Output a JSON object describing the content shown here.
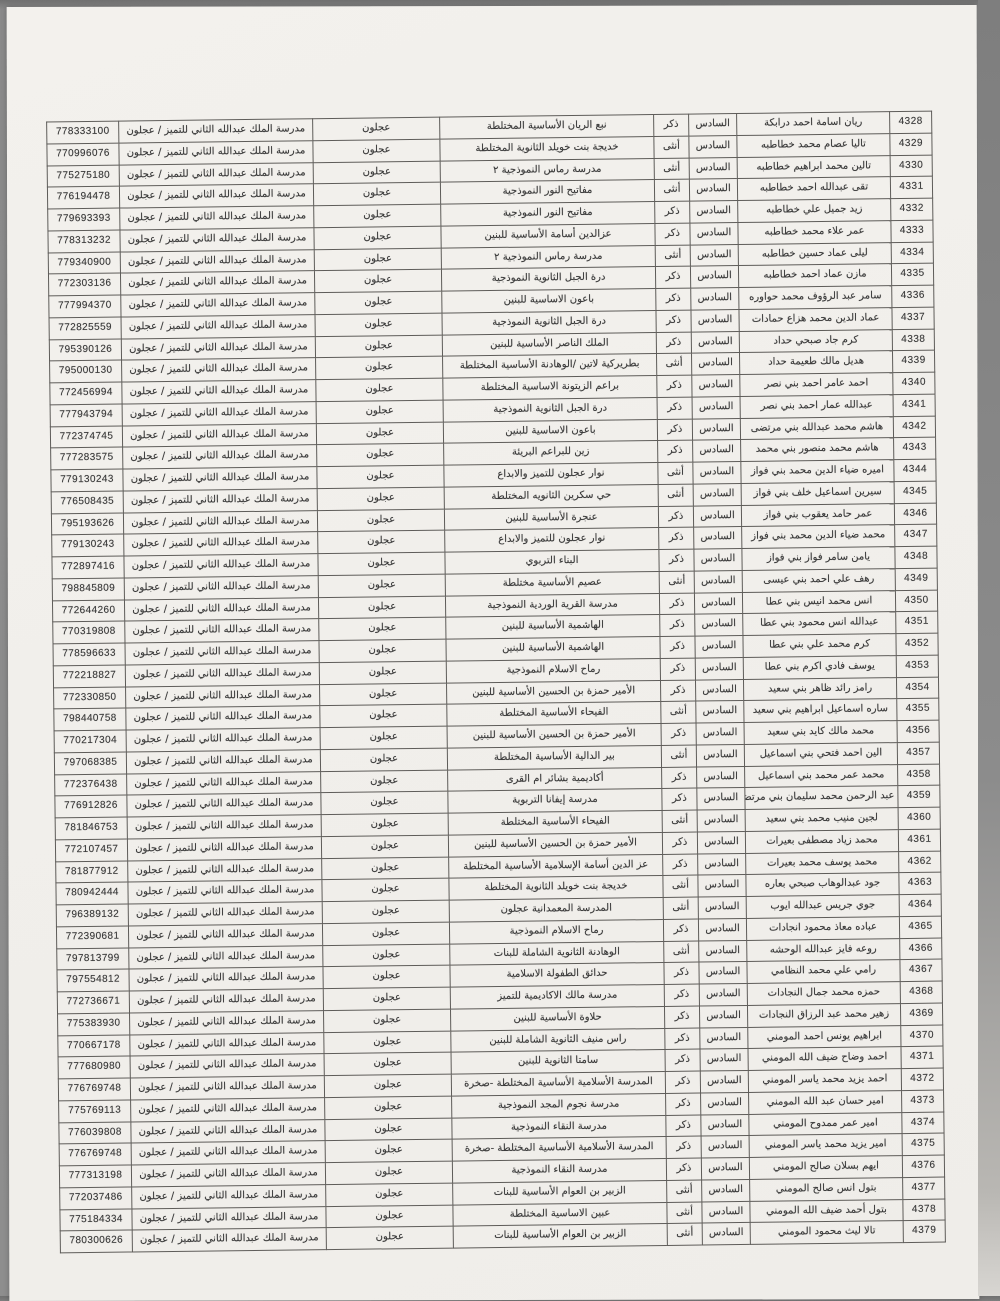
{
  "document": {
    "type": "scanned-student-roster-table",
    "paper_color": "#f1efeb",
    "scanner_background": "#8c8c8c",
    "constants": {
      "grade": "السادس",
      "region": "عجلون",
      "center_school": "مدرسة الملك عبدالله الثاني للتميز / عجلون"
    },
    "columns_right_to_left": [
      "serial",
      "name",
      "grade",
      "gender",
      "school",
      "region",
      "center_school",
      "phone"
    ],
    "rows": [
      {
        "serial": "4328",
        "name": "ريان اسامة احمد درابكة",
        "gender": "ذكر",
        "school": "نبع الريان الأساسية المختلطة",
        "phone": "778333100"
      },
      {
        "serial": "4329",
        "name": "تاليا عصام محمد خطاطبه",
        "gender": "أنثى",
        "school": "خديجة بنت خويلد الثانوية المختلطة",
        "phone": "770996076"
      },
      {
        "serial": "4330",
        "name": "تالين محمد ابراهيم خطاطبه",
        "gender": "أنثى",
        "school": "مدرسة رماس النموذجية ٢",
        "phone": "775275180"
      },
      {
        "serial": "4331",
        "name": "تقى عبدالله احمد خطاطبه",
        "gender": "أنثى",
        "school": "مفاتيح النور النموذجية",
        "phone": "776194478"
      },
      {
        "serial": "4332",
        "name": "زيد جميل علي خطاطبه",
        "gender": "ذكر",
        "school": "مفاتيح النور النموذجية",
        "phone": "779693393"
      },
      {
        "serial": "4333",
        "name": "عمر علاء محمد خطاطبه",
        "gender": "ذكر",
        "school": "عزالدين أسامة الأساسية للبنين",
        "phone": "778313232"
      },
      {
        "serial": "4334",
        "name": "ليلى عماد حسين خطاطبه",
        "gender": "أنثى",
        "school": "مدرسة رماس النموذجية ٢",
        "phone": "779340900"
      },
      {
        "serial": "4335",
        "name": "مازن عماد احمد خطاطبه",
        "gender": "ذكر",
        "school": "درة الجبل الثانوية النموذجية",
        "phone": "772303136"
      },
      {
        "serial": "4336",
        "name": "سامر عبد الرؤوف محمد حواوره",
        "gender": "ذكر",
        "school": "باعون الاساسية للبنين",
        "phone": "777994370"
      },
      {
        "serial": "4337",
        "name": "عماد الدين محمد هزاع حمادات",
        "gender": "ذكر",
        "school": "درة الجبل الثانوية النموذجية",
        "phone": "772825559"
      },
      {
        "serial": "4338",
        "name": "كرم جاد صبحي حداد",
        "gender": "ذكر",
        "school": "الملك الناصر الأساسية للبنين",
        "phone": "795390126"
      },
      {
        "serial": "4339",
        "name": "هديل مالك طعيمة حداد",
        "gender": "أنثى",
        "school": "بطريركية لاتين /الوهادنة الأساسية المختلطة",
        "phone": "795000130"
      },
      {
        "serial": "4340",
        "name": "احمد عامر احمد بني نصر",
        "gender": "ذكر",
        "school": "براعم الزيتونة الاساسية المختلطة",
        "phone": "772456994"
      },
      {
        "serial": "4341",
        "name": "عبدالله عمار احمد بني نصر",
        "gender": "ذكر",
        "school": "درة الجبل الثانوية النموذجية",
        "phone": "777943794"
      },
      {
        "serial": "4342",
        "name": "هاشم محمد عبدالله بني مرتضى",
        "gender": "ذكر",
        "school": "باعون الاساسية للبنين",
        "phone": "772374745"
      },
      {
        "serial": "4343",
        "name": "هاشم محمد منصور بني محمد",
        "gender": "ذكر",
        "school": "زين للبراعم البريئة",
        "phone": "777283575"
      },
      {
        "serial": "4344",
        "name": "اميره ضياء الدين محمد بني فواز",
        "gender": "أنثى",
        "school": "نوار عجلون للتميز والابداع",
        "phone": "779130243"
      },
      {
        "serial": "4345",
        "name": "سيرين اسماعيل خلف بني فواز",
        "gender": "أنثى",
        "school": "حي سكرين الثانويه المختلطة",
        "phone": "776508435"
      },
      {
        "serial": "4346",
        "name": "عمر حامد يعقوب بني فواز",
        "gender": "ذكر",
        "school": "عنجرة الأساسية للبنين",
        "phone": "795193626"
      },
      {
        "serial": "4347",
        "name": "محمد ضياء الدين محمد بني فواز",
        "gender": "ذكر",
        "school": "نوار عجلون للتميز والابداع",
        "phone": "779130243"
      },
      {
        "serial": "4348",
        "name": "يامن سامر فواز بني فواز",
        "gender": "ذكر",
        "school": "البناء التربوي",
        "phone": "772897416"
      },
      {
        "serial": "4349",
        "name": "رهف علي احمد بني عيسى",
        "gender": "أنثى",
        "school": "عصيم الأساسية مختلطة",
        "phone": "798845809"
      },
      {
        "serial": "4350",
        "name": "انس محمد انيس بني عطا",
        "gender": "ذكر",
        "school": "مدرسة القرية الوردية النموذجية",
        "phone": "772644260"
      },
      {
        "serial": "4351",
        "name": "عبدالله انس محمود بني عطا",
        "gender": "ذكر",
        "school": "الهاشمية الأساسية للبنين",
        "phone": "770319808"
      },
      {
        "serial": "4352",
        "name": "كرم محمد علي بني عطا",
        "gender": "ذكر",
        "school": "الهاشمية الأساسية للبنين",
        "phone": "778596633"
      },
      {
        "serial": "4353",
        "name": "يوسف فادي اكرم بني عطا",
        "gender": "ذكر",
        "school": "رماح الاسلام النموذجية",
        "phone": "772218827"
      },
      {
        "serial": "4354",
        "name": "رامز رائد ظاهر بني سعيد",
        "gender": "ذكر",
        "school": "الأمير حمزة بن الحسين الأساسية للبنين",
        "phone": "772330850"
      },
      {
        "serial": "4355",
        "name": "ساره اسماعيل ابراهيم بني سعيد",
        "gender": "أنثى",
        "school": "الفيحاء الأساسية المختلطة",
        "phone": "798440758"
      },
      {
        "serial": "4356",
        "name": "محمد مالك كايد بني سعيد",
        "gender": "ذكر",
        "school": "الأمير حمزة بن الحسين الأساسية للبنين",
        "phone": "770217304"
      },
      {
        "serial": "4357",
        "name": "الين احمد فتحي بني اسماعيل",
        "gender": "أنثى",
        "school": "بير الدالية الأساسية المختلطة",
        "phone": "797068385"
      },
      {
        "serial": "4358",
        "name": "محمد عمر محمد بني اسماعيل",
        "gender": "ذكر",
        "school": "أكاديمية بشائر ام القرى",
        "phone": "772376438"
      },
      {
        "serial": "4359",
        "name": "عبد الرحمن محمد سليمان بني مرتضى",
        "gender": "ذكر",
        "school": "مدرسة إيفانا التربوية",
        "phone": "776912826"
      },
      {
        "serial": "4360",
        "name": "لجين منيب محمد بني سعيد",
        "gender": "أنثى",
        "school": "الفيحاء الأساسية المختلطة",
        "phone": "781846753"
      },
      {
        "serial": "4361",
        "name": "محمد زياد مصطفى بعيرات",
        "gender": "ذكر",
        "school": "الأمير حمزة بن الحسين الأساسية للبنين",
        "phone": "772107457"
      },
      {
        "serial": "4362",
        "name": "محمد يوسف محمد بعيرات",
        "gender": "ذكر",
        "school": "عز الدين أسامة الإسلامية الأساسية المختلطة",
        "phone": "781877912"
      },
      {
        "serial": "4363",
        "name": "جود عبدالوهاب صبحي بعاره",
        "gender": "أنثى",
        "school": "خديجة بنت خويلد الثانوية المختلطة",
        "phone": "780942444"
      },
      {
        "serial": "4364",
        "name": "جوي جريس عبدالله ايوب",
        "gender": "أنثى",
        "school": "المدرسة المعمدانية عجلون",
        "phone": "796389132"
      },
      {
        "serial": "4365",
        "name": "عباده معاذ محمود انجادات",
        "gender": "ذكر",
        "school": "رماح الاسلام النموذجية",
        "phone": "772390681"
      },
      {
        "serial": "4366",
        "name": "روعه فايز عبدالله الوحشه",
        "gender": "أنثى",
        "school": "الوهادنة الثانوية الشاملة للبنات",
        "phone": "797813799"
      },
      {
        "serial": "4367",
        "name": "رامي علي محمد النظامي",
        "gender": "ذكر",
        "school": "حدائق الطفولة الاسلامية",
        "phone": "797554812"
      },
      {
        "serial": "4368",
        "name": "حمزه محمد جمال النجادات",
        "gender": "ذكر",
        "school": "مدرسة مالك الاكاديمية للتميز",
        "phone": "772736671"
      },
      {
        "serial": "4369",
        "name": "زهير محمد عبد الرزاق النجادات",
        "gender": "ذكر",
        "school": "حلاوة الأساسية للبنين",
        "phone": "775383930"
      },
      {
        "serial": "4370",
        "name": "ابراهيم يونس احمد المومني",
        "gender": "ذكر",
        "school": "راس منيف الثانوية الشاملة للبنين",
        "phone": "770667178"
      },
      {
        "serial": "4371",
        "name": "احمد وضاح ضيف الله المومني",
        "gender": "ذكر",
        "school": "سامتا الثانوية للبنين",
        "phone": "777680980"
      },
      {
        "serial": "4372",
        "name": "احمد يزيد محمد ياسر المومني",
        "gender": "ذكر",
        "school": "المدرسة الأسلامية الأساسية المختلطة -صخرة",
        "phone": "776769748"
      },
      {
        "serial": "4373",
        "name": "امير حسان عبد الله المومني",
        "gender": "ذكر",
        "school": "مدرسة نجوم المجد النموذجية",
        "phone": "775769113"
      },
      {
        "serial": "4374",
        "name": "امير عمر ممدوح المومني",
        "gender": "ذكر",
        "school": "مدرسة النقاء النموذجية",
        "phone": "776039808"
      },
      {
        "serial": "4375",
        "name": "امير يزيد محمد ياسر المومني",
        "gender": "ذكر",
        "school": "المدرسة الأسلامية الأساسية المختلطة -صخرة",
        "phone": "776769748"
      },
      {
        "serial": "4376",
        "name": "ايهم بسلان صالح المومني",
        "gender": "ذكر",
        "school": "مدرسة النقاء النموذجية",
        "phone": "777313198"
      },
      {
        "serial": "4377",
        "name": "بتول انس صالح المومني",
        "gender": "أنثى",
        "school": "الزبير بن العوام الأساسية للبنات",
        "phone": "772037486"
      },
      {
        "serial": "4378",
        "name": "بتول أحمد ضيف الله المومني",
        "gender": "أنثى",
        "school": "عبين الاساسية المختلطة",
        "phone": "775184334"
      },
      {
        "serial": "4379",
        "name": "تالا ليث محمود المومني",
        "gender": "أنثى",
        "school": "الزبير بن العوام الأساسية للبنات",
        "phone": "780300626"
      }
    ]
  }
}
